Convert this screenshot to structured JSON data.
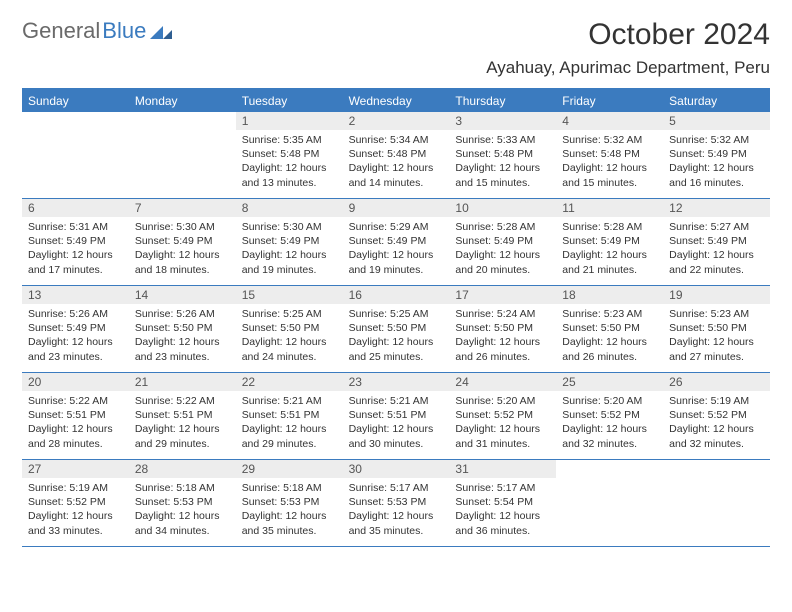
{
  "brand": {
    "part1": "General",
    "part2": "Blue"
  },
  "title": "October 2024",
  "location": "Ayahuay, Apurimac Department, Peru",
  "colors": {
    "header_bar": "#3b7bbf",
    "daynum_bg": "#ededed",
    "text": "#333333",
    "brand_gray": "#6a6a6a",
    "brand_blue": "#3b7bbf",
    "background": "#ffffff"
  },
  "typography": {
    "title_fontsize": 30,
    "location_fontsize": 17,
    "weekday_fontsize": 12,
    "daynum_fontsize": 12,
    "body_fontsize": 10.5
  },
  "weekdays": [
    "Sunday",
    "Monday",
    "Tuesday",
    "Wednesday",
    "Thursday",
    "Friday",
    "Saturday"
  ],
  "weeks": [
    [
      {
        "n": "",
        "sr": "",
        "ss": "",
        "dl": ""
      },
      {
        "n": "",
        "sr": "",
        "ss": "",
        "dl": ""
      },
      {
        "n": "1",
        "sr": "Sunrise: 5:35 AM",
        "ss": "Sunset: 5:48 PM",
        "dl": "Daylight: 12 hours and 13 minutes."
      },
      {
        "n": "2",
        "sr": "Sunrise: 5:34 AM",
        "ss": "Sunset: 5:48 PM",
        "dl": "Daylight: 12 hours and 14 minutes."
      },
      {
        "n": "3",
        "sr": "Sunrise: 5:33 AM",
        "ss": "Sunset: 5:48 PM",
        "dl": "Daylight: 12 hours and 15 minutes."
      },
      {
        "n": "4",
        "sr": "Sunrise: 5:32 AM",
        "ss": "Sunset: 5:48 PM",
        "dl": "Daylight: 12 hours and 15 minutes."
      },
      {
        "n": "5",
        "sr": "Sunrise: 5:32 AM",
        "ss": "Sunset: 5:49 PM",
        "dl": "Daylight: 12 hours and 16 minutes."
      }
    ],
    [
      {
        "n": "6",
        "sr": "Sunrise: 5:31 AM",
        "ss": "Sunset: 5:49 PM",
        "dl": "Daylight: 12 hours and 17 minutes."
      },
      {
        "n": "7",
        "sr": "Sunrise: 5:30 AM",
        "ss": "Sunset: 5:49 PM",
        "dl": "Daylight: 12 hours and 18 minutes."
      },
      {
        "n": "8",
        "sr": "Sunrise: 5:30 AM",
        "ss": "Sunset: 5:49 PM",
        "dl": "Daylight: 12 hours and 19 minutes."
      },
      {
        "n": "9",
        "sr": "Sunrise: 5:29 AM",
        "ss": "Sunset: 5:49 PM",
        "dl": "Daylight: 12 hours and 19 minutes."
      },
      {
        "n": "10",
        "sr": "Sunrise: 5:28 AM",
        "ss": "Sunset: 5:49 PM",
        "dl": "Daylight: 12 hours and 20 minutes."
      },
      {
        "n": "11",
        "sr": "Sunrise: 5:28 AM",
        "ss": "Sunset: 5:49 PM",
        "dl": "Daylight: 12 hours and 21 minutes."
      },
      {
        "n": "12",
        "sr": "Sunrise: 5:27 AM",
        "ss": "Sunset: 5:49 PM",
        "dl": "Daylight: 12 hours and 22 minutes."
      }
    ],
    [
      {
        "n": "13",
        "sr": "Sunrise: 5:26 AM",
        "ss": "Sunset: 5:49 PM",
        "dl": "Daylight: 12 hours and 23 minutes."
      },
      {
        "n": "14",
        "sr": "Sunrise: 5:26 AM",
        "ss": "Sunset: 5:50 PM",
        "dl": "Daylight: 12 hours and 23 minutes."
      },
      {
        "n": "15",
        "sr": "Sunrise: 5:25 AM",
        "ss": "Sunset: 5:50 PM",
        "dl": "Daylight: 12 hours and 24 minutes."
      },
      {
        "n": "16",
        "sr": "Sunrise: 5:25 AM",
        "ss": "Sunset: 5:50 PM",
        "dl": "Daylight: 12 hours and 25 minutes."
      },
      {
        "n": "17",
        "sr": "Sunrise: 5:24 AM",
        "ss": "Sunset: 5:50 PM",
        "dl": "Daylight: 12 hours and 26 minutes."
      },
      {
        "n": "18",
        "sr": "Sunrise: 5:23 AM",
        "ss": "Sunset: 5:50 PM",
        "dl": "Daylight: 12 hours and 26 minutes."
      },
      {
        "n": "19",
        "sr": "Sunrise: 5:23 AM",
        "ss": "Sunset: 5:50 PM",
        "dl": "Daylight: 12 hours and 27 minutes."
      }
    ],
    [
      {
        "n": "20",
        "sr": "Sunrise: 5:22 AM",
        "ss": "Sunset: 5:51 PM",
        "dl": "Daylight: 12 hours and 28 minutes."
      },
      {
        "n": "21",
        "sr": "Sunrise: 5:22 AM",
        "ss": "Sunset: 5:51 PM",
        "dl": "Daylight: 12 hours and 29 minutes."
      },
      {
        "n": "22",
        "sr": "Sunrise: 5:21 AM",
        "ss": "Sunset: 5:51 PM",
        "dl": "Daylight: 12 hours and 29 minutes."
      },
      {
        "n": "23",
        "sr": "Sunrise: 5:21 AM",
        "ss": "Sunset: 5:51 PM",
        "dl": "Daylight: 12 hours and 30 minutes."
      },
      {
        "n": "24",
        "sr": "Sunrise: 5:20 AM",
        "ss": "Sunset: 5:52 PM",
        "dl": "Daylight: 12 hours and 31 minutes."
      },
      {
        "n": "25",
        "sr": "Sunrise: 5:20 AM",
        "ss": "Sunset: 5:52 PM",
        "dl": "Daylight: 12 hours and 32 minutes."
      },
      {
        "n": "26",
        "sr": "Sunrise: 5:19 AM",
        "ss": "Sunset: 5:52 PM",
        "dl": "Daylight: 12 hours and 32 minutes."
      }
    ],
    [
      {
        "n": "27",
        "sr": "Sunrise: 5:19 AM",
        "ss": "Sunset: 5:52 PM",
        "dl": "Daylight: 12 hours and 33 minutes."
      },
      {
        "n": "28",
        "sr": "Sunrise: 5:18 AM",
        "ss": "Sunset: 5:53 PM",
        "dl": "Daylight: 12 hours and 34 minutes."
      },
      {
        "n": "29",
        "sr": "Sunrise: 5:18 AM",
        "ss": "Sunset: 5:53 PM",
        "dl": "Daylight: 12 hours and 35 minutes."
      },
      {
        "n": "30",
        "sr": "Sunrise: 5:17 AM",
        "ss": "Sunset: 5:53 PM",
        "dl": "Daylight: 12 hours and 35 minutes."
      },
      {
        "n": "31",
        "sr": "Sunrise: 5:17 AM",
        "ss": "Sunset: 5:54 PM",
        "dl": "Daylight: 12 hours and 36 minutes."
      },
      {
        "n": "",
        "sr": "",
        "ss": "",
        "dl": ""
      },
      {
        "n": "",
        "sr": "",
        "ss": "",
        "dl": ""
      }
    ]
  ]
}
